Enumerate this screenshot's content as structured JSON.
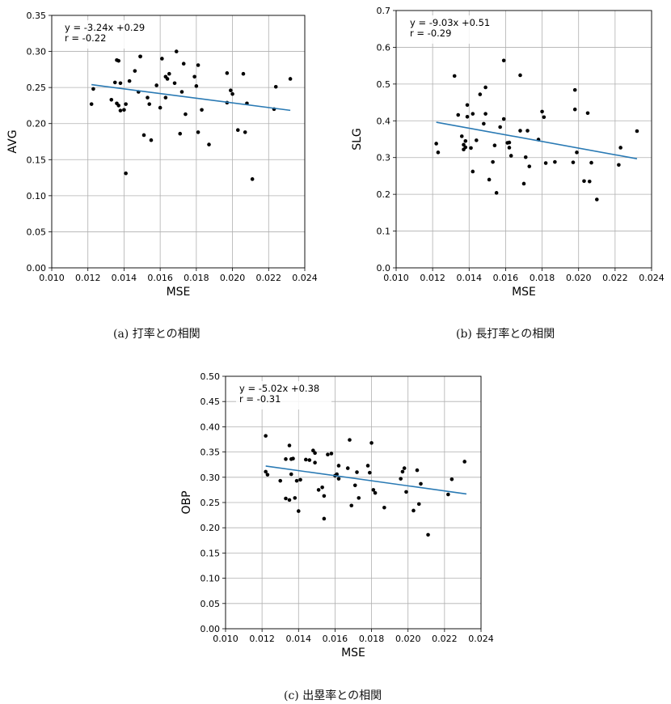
{
  "colors": {
    "fit_line": "#2a7ab4",
    "grid": "#b0b0b0",
    "point": "#000000",
    "axis": "#000000"
  },
  "chart_data": [
    {
      "type": "scatter",
      "id": "avg",
      "caption": "(a) 打率との相関",
      "xlabel": "MSE",
      "ylabel": "AVG",
      "xlim": [
        0.01,
        0.024
      ],
      "ylim": [
        0.0,
        0.35
      ],
      "xticks": [
        "0.010",
        "0.012",
        "0.014",
        "0.016",
        "0.018",
        "0.020",
        "0.022",
        "0.024"
      ],
      "yticks": [
        "0.00",
        "0.05",
        "0.10",
        "0.15",
        "0.20",
        "0.25",
        "0.30",
        "0.35"
      ],
      "annotation": [
        "y = -3.24x +0.29",
        "r = -0.22"
      ],
      "fit": {
        "slope": -3.24,
        "intercept": 0.2935,
        "x_range": [
          0.0122,
          0.0232
        ]
      },
      "points": [
        [
          0.0122,
          0.227
        ],
        [
          0.0123,
          0.248
        ],
        [
          0.0133,
          0.233
        ],
        [
          0.0135,
          0.257
        ],
        [
          0.0136,
          0.228
        ],
        [
          0.0136,
          0.288
        ],
        [
          0.0137,
          0.287
        ],
        [
          0.0137,
          0.225
        ],
        [
          0.0138,
          0.256
        ],
        [
          0.0138,
          0.218
        ],
        [
          0.014,
          0.219
        ],
        [
          0.0141,
          0.227
        ],
        [
          0.0141,
          0.131
        ],
        [
          0.0143,
          0.259
        ],
        [
          0.0146,
          0.273
        ],
        [
          0.0148,
          0.244
        ],
        [
          0.0149,
          0.293
        ],
        [
          0.0149,
          0.293
        ],
        [
          0.0151,
          0.184
        ],
        [
          0.0153,
          0.236
        ],
        [
          0.0154,
          0.227
        ],
        [
          0.0155,
          0.177
        ],
        [
          0.0158,
          0.253
        ],
        [
          0.016,
          0.222
        ],
        [
          0.0161,
          0.29
        ],
        [
          0.0163,
          0.265
        ],
        [
          0.0163,
          0.236
        ],
        [
          0.0164,
          0.262
        ],
        [
          0.0165,
          0.269
        ],
        [
          0.0168,
          0.256
        ],
        [
          0.0169,
          0.3
        ],
        [
          0.0171,
          0.186
        ],
        [
          0.0172,
          0.244
        ],
        [
          0.0173,
          0.283
        ],
        [
          0.0174,
          0.213
        ],
        [
          0.0179,
          0.265
        ],
        [
          0.018,
          0.252
        ],
        [
          0.0181,
          0.281
        ],
        [
          0.0181,
          0.188
        ],
        [
          0.0183,
          0.219
        ],
        [
          0.0187,
          0.171
        ],
        [
          0.0197,
          0.229
        ],
        [
          0.0197,
          0.27
        ],
        [
          0.0199,
          0.246
        ],
        [
          0.02,
          0.241
        ],
        [
          0.0203,
          0.191
        ],
        [
          0.0206,
          0.269
        ],
        [
          0.0207,
          0.188
        ],
        [
          0.0208,
          0.228
        ],
        [
          0.0211,
          0.123
        ],
        [
          0.0223,
          0.22
        ],
        [
          0.0224,
          0.251
        ],
        [
          0.0232,
          0.262
        ]
      ]
    },
    {
      "type": "scatter",
      "id": "slg",
      "caption": "(b) 長打率との相関",
      "xlabel": "MSE",
      "ylabel": "SLG",
      "xlim": [
        0.01,
        0.024
      ],
      "ylim": [
        0.0,
        0.7
      ],
      "xticks": [
        "0.010",
        "0.012",
        "0.014",
        "0.016",
        "0.018",
        "0.020",
        "0.022",
        "0.024"
      ],
      "yticks": [
        "0.0",
        "0.1",
        "0.2",
        "0.3",
        "0.4",
        "0.5",
        "0.6",
        "0.7"
      ],
      "annotation": [
        "y = -9.03x +0.51",
        "r = -0.29"
      ],
      "fit": {
        "slope": -9.03,
        "intercept": 0.5063,
        "x_range": [
          0.0122,
          0.0232
        ]
      },
      "points": [
        [
          0.0122,
          0.338
        ],
        [
          0.0123,
          0.314
        ],
        [
          0.0132,
          0.522
        ],
        [
          0.0134,
          0.416
        ],
        [
          0.0136,
          0.358
        ],
        [
          0.0137,
          0.335
        ],
        [
          0.0137,
          0.322
        ],
        [
          0.0138,
          0.345
        ],
        [
          0.0138,
          0.328
        ],
        [
          0.0139,
          0.411
        ],
        [
          0.0139,
          0.443
        ],
        [
          0.0141,
          0.326
        ],
        [
          0.0142,
          0.262
        ],
        [
          0.0142,
          0.419
        ],
        [
          0.0144,
          0.347
        ],
        [
          0.0146,
          0.472
        ],
        [
          0.0148,
          0.392
        ],
        [
          0.0149,
          0.491
        ],
        [
          0.0149,
          0.419
        ],
        [
          0.0151,
          0.24
        ],
        [
          0.0153,
          0.288
        ],
        [
          0.0154,
          0.333
        ],
        [
          0.0155,
          0.204
        ],
        [
          0.0157,
          0.383
        ],
        [
          0.0159,
          0.405
        ],
        [
          0.0159,
          0.564
        ],
        [
          0.0161,
          0.34
        ],
        [
          0.0162,
          0.327
        ],
        [
          0.0162,
          0.341
        ],
        [
          0.0163,
          0.305
        ],
        [
          0.0168,
          0.373
        ],
        [
          0.0168,
          0.524
        ],
        [
          0.017,
          0.229
        ],
        [
          0.0171,
          0.301
        ],
        [
          0.0172,
          0.373
        ],
        [
          0.0173,
          0.276
        ],
        [
          0.0178,
          0.349
        ],
        [
          0.018,
          0.425
        ],
        [
          0.0181,
          0.41
        ],
        [
          0.0182,
          0.285
        ],
        [
          0.0187,
          0.288
        ],
        [
          0.0197,
          0.287
        ],
        [
          0.0198,
          0.431
        ],
        [
          0.0198,
          0.484
        ],
        [
          0.0199,
          0.314
        ],
        [
          0.0203,
          0.236
        ],
        [
          0.0205,
          0.421
        ],
        [
          0.0206,
          0.235
        ],
        [
          0.0207,
          0.286
        ],
        [
          0.021,
          0.186
        ],
        [
          0.0222,
          0.28
        ],
        [
          0.0223,
          0.327
        ],
        [
          0.0232,
          0.372
        ]
      ]
    },
    {
      "type": "scatter",
      "id": "obp",
      "caption": "(c) 出塁率との相関",
      "xlabel": "MSE",
      "ylabel": "OBP",
      "xlim": [
        0.01,
        0.024
      ],
      "ylim": [
        0.0,
        0.5
      ],
      "xticks": [
        "0.010",
        "0.012",
        "0.014",
        "0.016",
        "0.018",
        "0.020",
        "0.022",
        "0.024"
      ],
      "yticks": [
        "0.00",
        "0.05",
        "0.10",
        "0.15",
        "0.20",
        "0.25",
        "0.30",
        "0.35",
        "0.40",
        "0.45",
        "0.50"
      ],
      "annotation": [
        "y = -5.02x +0.38",
        "r = -0.31"
      ],
      "fit": {
        "slope": -5.02,
        "intercept": 0.3834,
        "x_range": [
          0.0122,
          0.0232
        ]
      },
      "points": [
        [
          0.0122,
          0.382
        ],
        [
          0.0122,
          0.311
        ],
        [
          0.0123,
          0.305
        ],
        [
          0.013,
          0.293
        ],
        [
          0.0133,
          0.336
        ],
        [
          0.0133,
          0.258
        ],
        [
          0.0135,
          0.363
        ],
        [
          0.0135,
          0.255
        ],
        [
          0.0136,
          0.336
        ],
        [
          0.0136,
          0.306
        ],
        [
          0.0137,
          0.337
        ],
        [
          0.0138,
          0.259
        ],
        [
          0.0139,
          0.293
        ],
        [
          0.014,
          0.233
        ],
        [
          0.0141,
          0.295
        ],
        [
          0.0144,
          0.335
        ],
        [
          0.0146,
          0.334
        ],
        [
          0.0148,
          0.353
        ],
        [
          0.0149,
          0.348
        ],
        [
          0.0149,
          0.329
        ],
        [
          0.0151,
          0.275
        ],
        [
          0.0153,
          0.28
        ],
        [
          0.0154,
          0.218
        ],
        [
          0.0154,
          0.263
        ],
        [
          0.0156,
          0.345
        ],
        [
          0.0158,
          0.347
        ],
        [
          0.016,
          0.303
        ],
        [
          0.0161,
          0.306
        ],
        [
          0.0162,
          0.297
        ],
        [
          0.0162,
          0.323
        ],
        [
          0.0167,
          0.318
        ],
        [
          0.0168,
          0.374
        ],
        [
          0.0169,
          0.244
        ],
        [
          0.0171,
          0.284
        ],
        [
          0.0172,
          0.31
        ],
        [
          0.0173,
          0.259
        ],
        [
          0.0178,
          0.323
        ],
        [
          0.0179,
          0.309
        ],
        [
          0.018,
          0.368
        ],
        [
          0.0181,
          0.275
        ],
        [
          0.0182,
          0.269
        ],
        [
          0.0187,
          0.24
        ],
        [
          0.0196,
          0.297
        ],
        [
          0.0197,
          0.311
        ],
        [
          0.0198,
          0.318
        ],
        [
          0.0199,
          0.271
        ],
        [
          0.0203,
          0.234
        ],
        [
          0.0205,
          0.314
        ],
        [
          0.0206,
          0.247
        ],
        [
          0.0207,
          0.287
        ],
        [
          0.0211,
          0.186
        ],
        [
          0.0222,
          0.266
        ],
        [
          0.0224,
          0.296
        ],
        [
          0.0231,
          0.331
        ]
      ]
    }
  ]
}
